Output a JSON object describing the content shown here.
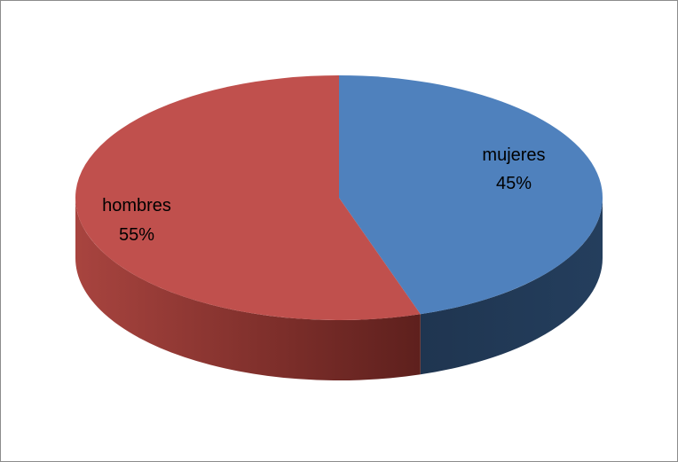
{
  "chart_data": {
    "type": "pie",
    "title": "",
    "slices": [
      {
        "label": "mujeres",
        "value": 45,
        "value_label": "45%",
        "color": "#4f81bd",
        "side_color": "#1f3550"
      },
      {
        "label": "hombres",
        "value": 55,
        "value_label": "55%",
        "color": "#c0504d",
        "side_color": "#7a2c29"
      }
    ],
    "style": "3d",
    "start_angle_deg": 90,
    "direction": "clockwise",
    "legend": "none"
  }
}
